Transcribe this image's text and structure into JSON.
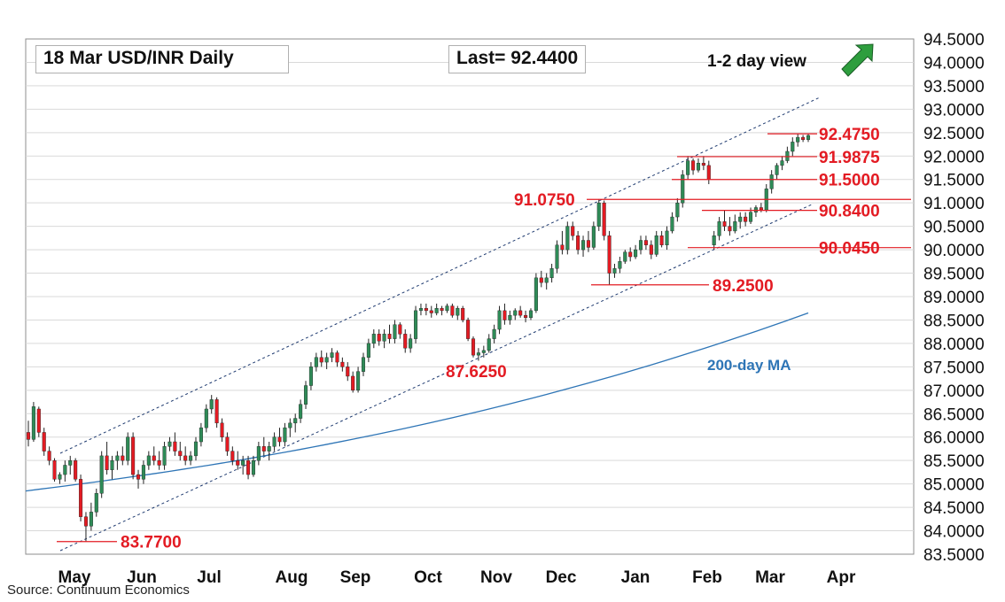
{
  "header": {
    "title": "18 Mar  USD/INR  Daily",
    "last": "Last= 92.4400",
    "view": "1-2 day view",
    "view_arrow_icon": "up-arrow-icon",
    "arrow_color": "#2e9e3e"
  },
  "source": "Source: Continuum Economics",
  "colors": {
    "up": "#2e8b57",
    "down": "#e31b23",
    "ma": "#2e75b6",
    "level": "#e31b23",
    "channel": "#1f3b70",
    "grid": "#d9d9d9"
  },
  "chart_data": {
    "type": "candlestick",
    "title": "18 Mar  USD/INR  Daily",
    "y_ticks": [
      "94.5000",
      "94.0000",
      "93.5000",
      "93.0000",
      "92.5000",
      "92.0000",
      "91.5000",
      "91.0000",
      "90.5000",
      "90.0000",
      "89.5000",
      "89.0000",
      "88.5000",
      "88.0000",
      "87.5000",
      "87.0000",
      "86.5000",
      "86.0000",
      "85.5000",
      "85.0000",
      "84.5000",
      "84.0000",
      "83.5000"
    ],
    "ylim": [
      83.5,
      94.5
    ],
    "x_months": [
      "May",
      "Jun",
      "Jul",
      "Aug",
      "Sep",
      "Oct",
      "Nov",
      "Dec",
      "Jan",
      "Feb",
      "Mar",
      "Apr"
    ],
    "grid": "horizontal",
    "candles": [
      [
        86.1,
        86.35,
        85.8,
        85.95
      ],
      [
        85.95,
        86.75,
        85.9,
        86.65
      ],
      [
        86.6,
        86.65,
        86.0,
        86.1
      ],
      [
        86.1,
        86.2,
        85.6,
        85.7
      ],
      [
        85.7,
        85.8,
        85.4,
        85.5
      ],
      [
        85.5,
        85.55,
        85.05,
        85.1
      ],
      [
        85.1,
        85.25,
        85.0,
        85.2
      ],
      [
        85.2,
        85.5,
        85.05,
        85.4
      ],
      [
        85.4,
        85.6,
        85.2,
        85.5
      ],
      [
        85.5,
        85.55,
        85.05,
        85.1
      ],
      [
        85.1,
        85.2,
        84.2,
        84.3
      ],
      [
        84.3,
        84.4,
        83.77,
        84.1
      ],
      [
        84.1,
        84.6,
        84.0,
        84.4
      ],
      [
        84.4,
        84.9,
        84.3,
        84.8
      ],
      [
        84.8,
        85.7,
        84.7,
        85.6
      ],
      [
        85.6,
        85.9,
        85.2,
        85.3
      ],
      [
        85.3,
        85.6,
        85.1,
        85.5
      ],
      [
        85.5,
        85.7,
        85.3,
        85.6
      ],
      [
        85.6,
        85.8,
        85.4,
        85.5
      ],
      [
        85.5,
        86.1,
        85.4,
        86.0
      ],
      [
        86.0,
        86.1,
        85.1,
        85.2
      ],
      [
        85.2,
        85.3,
        84.9,
        85.1
      ],
      [
        85.1,
        85.5,
        85.0,
        85.4
      ],
      [
        85.4,
        85.7,
        85.3,
        85.6
      ],
      [
        85.6,
        85.8,
        85.4,
        85.5
      ],
      [
        85.5,
        85.7,
        85.3,
        85.4
      ],
      [
        85.4,
        85.9,
        85.3,
        85.8
      ],
      [
        85.8,
        86.0,
        85.7,
        85.9
      ],
      [
        85.9,
        86.1,
        85.6,
        85.7
      ],
      [
        85.7,
        85.9,
        85.5,
        85.6
      ],
      [
        85.6,
        85.8,
        85.4,
        85.5
      ],
      [
        85.5,
        85.7,
        85.4,
        85.6
      ],
      [
        85.6,
        86.0,
        85.5,
        85.9
      ],
      [
        85.9,
        86.3,
        85.8,
        86.2
      ],
      [
        86.2,
        86.7,
        86.1,
        86.6
      ],
      [
        86.6,
        86.9,
        86.5,
        86.8
      ],
      [
        86.8,
        86.85,
        86.2,
        86.3
      ],
      [
        86.3,
        86.4,
        85.9,
        86.0
      ],
      [
        86.0,
        86.1,
        85.6,
        85.7
      ],
      [
        85.7,
        85.8,
        85.4,
        85.5
      ],
      [
        85.5,
        85.7,
        85.3,
        85.4
      ],
      [
        85.4,
        85.6,
        85.2,
        85.5
      ],
      [
        85.5,
        85.6,
        85.1,
        85.2
      ],
      [
        85.2,
        85.6,
        85.15,
        85.5
      ],
      [
        85.5,
        85.9,
        85.4,
        85.8
      ],
      [
        85.8,
        86.0,
        85.6,
        85.7
      ],
      [
        85.7,
        85.9,
        85.5,
        85.8
      ],
      [
        85.8,
        86.1,
        85.7,
        86.0
      ],
      [
        86.0,
        86.2,
        85.8,
        85.9
      ],
      [
        85.9,
        86.3,
        85.8,
        86.2
      ],
      [
        86.2,
        86.4,
        86.0,
        86.3
      ],
      [
        86.3,
        86.5,
        86.1,
        86.4
      ],
      [
        86.4,
        86.8,
        86.3,
        86.7
      ],
      [
        86.7,
        87.2,
        86.6,
        87.1
      ],
      [
        87.1,
        87.6,
        87.0,
        87.5
      ],
      [
        87.5,
        87.8,
        87.4,
        87.7
      ],
      [
        87.7,
        87.85,
        87.5,
        87.6
      ],
      [
        87.6,
        87.8,
        87.45,
        87.7
      ],
      [
        87.7,
        87.9,
        87.6,
        87.8
      ],
      [
        87.8,
        87.85,
        87.5,
        87.6
      ],
      [
        87.6,
        87.7,
        87.4,
        87.5
      ],
      [
        87.5,
        87.6,
        87.2,
        87.3
      ],
      [
        87.3,
        87.4,
        86.95,
        87.0
      ],
      [
        87.0,
        87.5,
        86.95,
        87.4
      ],
      [
        87.4,
        87.8,
        87.3,
        87.7
      ],
      [
        87.7,
        88.1,
        87.6,
        88.0
      ],
      [
        88.0,
        88.3,
        87.9,
        88.2
      ],
      [
        88.2,
        88.3,
        87.95,
        88.05
      ],
      [
        88.05,
        88.3,
        87.9,
        88.2
      ],
      [
        88.2,
        88.4,
        88.0,
        88.1
      ],
      [
        88.1,
        88.5,
        88.0,
        88.4
      ],
      [
        88.4,
        88.45,
        88.1,
        88.2
      ],
      [
        88.2,
        88.3,
        87.8,
        87.9
      ],
      [
        87.9,
        88.2,
        87.8,
        88.1
      ],
      [
        88.1,
        88.8,
        88.0,
        88.7
      ],
      [
        88.7,
        88.85,
        88.6,
        88.75
      ],
      [
        88.75,
        88.85,
        88.6,
        88.7
      ],
      [
        88.7,
        88.8,
        88.55,
        88.65
      ],
      [
        88.65,
        88.85,
        88.6,
        88.75
      ],
      [
        88.75,
        88.8,
        88.6,
        88.7
      ],
      [
        88.7,
        88.85,
        88.65,
        88.8
      ],
      [
        88.8,
        88.85,
        88.55,
        88.6
      ],
      [
        88.6,
        88.8,
        88.5,
        88.75
      ],
      [
        88.75,
        88.8,
        88.45,
        88.5
      ],
      [
        88.5,
        88.55,
        88.05,
        88.1
      ],
      [
        88.1,
        88.15,
        87.7,
        87.75
      ],
      [
        87.75,
        87.9,
        87.63,
        87.8
      ],
      [
        87.8,
        87.95,
        87.7,
        87.85
      ],
      [
        87.85,
        88.2,
        87.8,
        88.1
      ],
      [
        88.1,
        88.4,
        88.0,
        88.3
      ],
      [
        88.3,
        88.8,
        88.2,
        88.7
      ],
      [
        88.7,
        88.85,
        88.4,
        88.5
      ],
      [
        88.5,
        88.7,
        88.4,
        88.6
      ],
      [
        88.6,
        88.75,
        88.5,
        88.7
      ],
      [
        88.7,
        88.8,
        88.55,
        88.6
      ],
      [
        88.6,
        88.7,
        88.45,
        88.55
      ],
      [
        88.55,
        88.75,
        88.5,
        88.7
      ],
      [
        88.7,
        89.5,
        88.65,
        89.4
      ],
      [
        89.4,
        89.55,
        89.2,
        89.3
      ],
      [
        89.3,
        89.5,
        89.15,
        89.4
      ],
      [
        89.4,
        89.7,
        89.3,
        89.6
      ],
      [
        89.6,
        90.2,
        89.5,
        90.1
      ],
      [
        90.1,
        90.4,
        89.9,
        90.0
      ],
      [
        90.0,
        90.6,
        89.9,
        90.5
      ],
      [
        90.5,
        90.6,
        90.2,
        90.3
      ],
      [
        90.3,
        90.4,
        89.9,
        90.0
      ],
      [
        90.0,
        90.3,
        89.85,
        90.2
      ],
      [
        90.2,
        90.4,
        89.95,
        90.05
      ],
      [
        90.05,
        90.6,
        90.0,
        90.5
      ],
      [
        90.5,
        91.08,
        90.4,
        91.0
      ],
      [
        91.0,
        91.05,
        90.2,
        90.3
      ],
      [
        90.3,
        90.4,
        89.25,
        89.5
      ],
      [
        89.5,
        89.7,
        89.4,
        89.6
      ],
      [
        89.6,
        89.85,
        89.5,
        89.75
      ],
      [
        89.75,
        90.0,
        89.7,
        89.95
      ],
      [
        89.95,
        90.05,
        89.75,
        89.85
      ],
      [
        89.85,
        90.1,
        89.8,
        90.0
      ],
      [
        90.0,
        90.3,
        89.9,
        90.2
      ],
      [
        90.2,
        90.3,
        90.0,
        90.1
      ],
      [
        90.1,
        90.2,
        89.8,
        89.9
      ],
      [
        89.9,
        90.4,
        89.85,
        90.3
      ],
      [
        90.3,
        90.4,
        90.05,
        90.1
      ],
      [
        90.1,
        90.5,
        90.0,
        90.4
      ],
      [
        90.4,
        90.8,
        90.35,
        90.7
      ],
      [
        90.7,
        91.1,
        90.6,
        91.0
      ],
      [
        91.0,
        91.7,
        90.9,
        91.6
      ],
      [
        91.6,
        92.0,
        91.5,
        91.9
      ],
      [
        91.9,
        91.95,
        91.6,
        91.7
      ],
      [
        91.7,
        91.95,
        91.65,
        91.85
      ],
      [
        91.85,
        92.0,
        91.7,
        91.8
      ],
      [
        91.8,
        91.9,
        91.4,
        91.5
      ],
      [
        90.1,
        90.4,
        90.0,
        90.3
      ],
      [
        90.3,
        90.7,
        90.2,
        90.6
      ],
      [
        90.6,
        90.84,
        90.4,
        90.5
      ],
      [
        90.5,
        90.7,
        90.3,
        90.4
      ],
      [
        90.4,
        90.75,
        90.35,
        90.6
      ],
      [
        90.6,
        90.8,
        90.45,
        90.7
      ],
      [
        90.7,
        90.8,
        90.5,
        90.6
      ],
      [
        90.6,
        90.9,
        90.55,
        90.8
      ],
      [
        90.8,
        90.95,
        90.7,
        90.9
      ],
      [
        90.9,
        91.0,
        90.8,
        90.85
      ],
      [
        90.85,
        91.4,
        90.8,
        91.3
      ],
      [
        91.3,
        91.7,
        91.2,
        91.6
      ],
      [
        91.6,
        91.85,
        91.5,
        91.8
      ],
      [
        91.8,
        92.0,
        91.7,
        91.9
      ],
      [
        91.9,
        92.2,
        91.85,
        92.1
      ],
      [
        92.1,
        92.4,
        92.0,
        92.3
      ],
      [
        92.3,
        92.48,
        92.2,
        92.4
      ],
      [
        92.4,
        92.45,
        92.3,
        92.35
      ],
      [
        92.35,
        92.48,
        92.3,
        92.44
      ]
    ],
    "moving_average": {
      "name": "200-day MA",
      "start": 84.85,
      "end": 88.65
    },
    "levels": [
      {
        "value": 92.475,
        "label": "92.4750"
      },
      {
        "value": 91.9875,
        "label": "91.9875"
      },
      {
        "value": 91.5,
        "label": "91.5000"
      },
      {
        "value": 91.075,
        "label": "91.0750"
      },
      {
        "value": 90.84,
        "label": "90.8400"
      },
      {
        "value": 90.045,
        "label": "90.0450"
      },
      {
        "value": 89.25,
        "label": "89.2500"
      },
      {
        "value": 87.625,
        "label": "87.6250"
      },
      {
        "value": 83.77,
        "label": "83.7700"
      }
    ]
  }
}
